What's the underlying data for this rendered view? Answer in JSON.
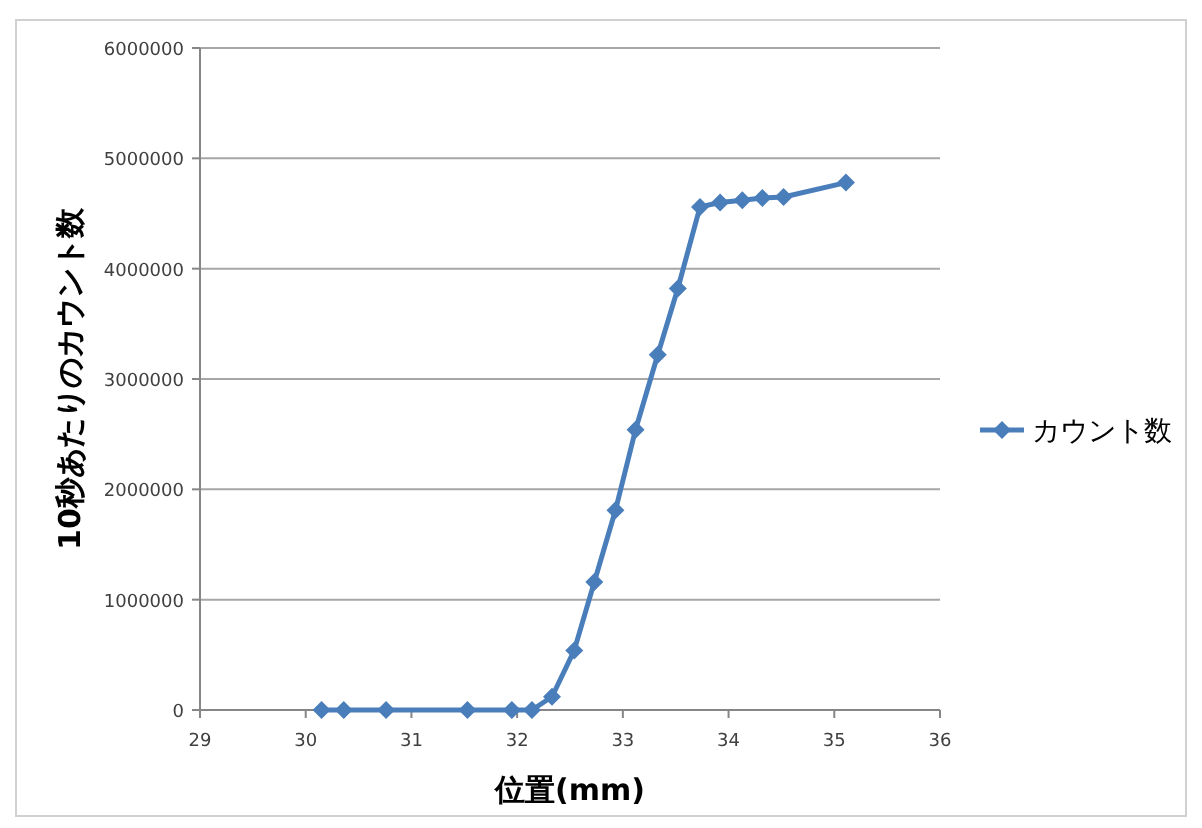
{
  "chart_data": {
    "type": "line",
    "xlabel": "位置(mm)",
    "ylabel": "10秒あたりのカウント数",
    "x": [
      30.15,
      30.36,
      30.76,
      31.53,
      31.95,
      32.14,
      32.33,
      32.54,
      32.73,
      32.93,
      33.12,
      33.33,
      33.52,
      33.73,
      33.92,
      34.13,
      34.32,
      34.52,
      35.11
    ],
    "series": [
      {
        "name": "カウント数",
        "color": "#4a7ebb",
        "values": [
          0,
          0,
          0,
          0,
          0,
          0,
          120000,
          540000,
          1160000,
          1810000,
          2540000,
          3220000,
          3820000,
          4560000,
          4600000,
          4620000,
          4640000,
          4650000,
          4780000
        ]
      }
    ],
    "xlim": [
      29,
      36
    ],
    "xticks": [
      29,
      30,
      31,
      32,
      33,
      34,
      35,
      36
    ],
    "ylim": [
      0,
      6000000
    ],
    "yticks": [
      0,
      1000000,
      2000000,
      3000000,
      4000000,
      5000000,
      6000000
    ],
    "grid": "y",
    "legend": "right",
    "marker": "diamond",
    "line_style": "solid"
  }
}
